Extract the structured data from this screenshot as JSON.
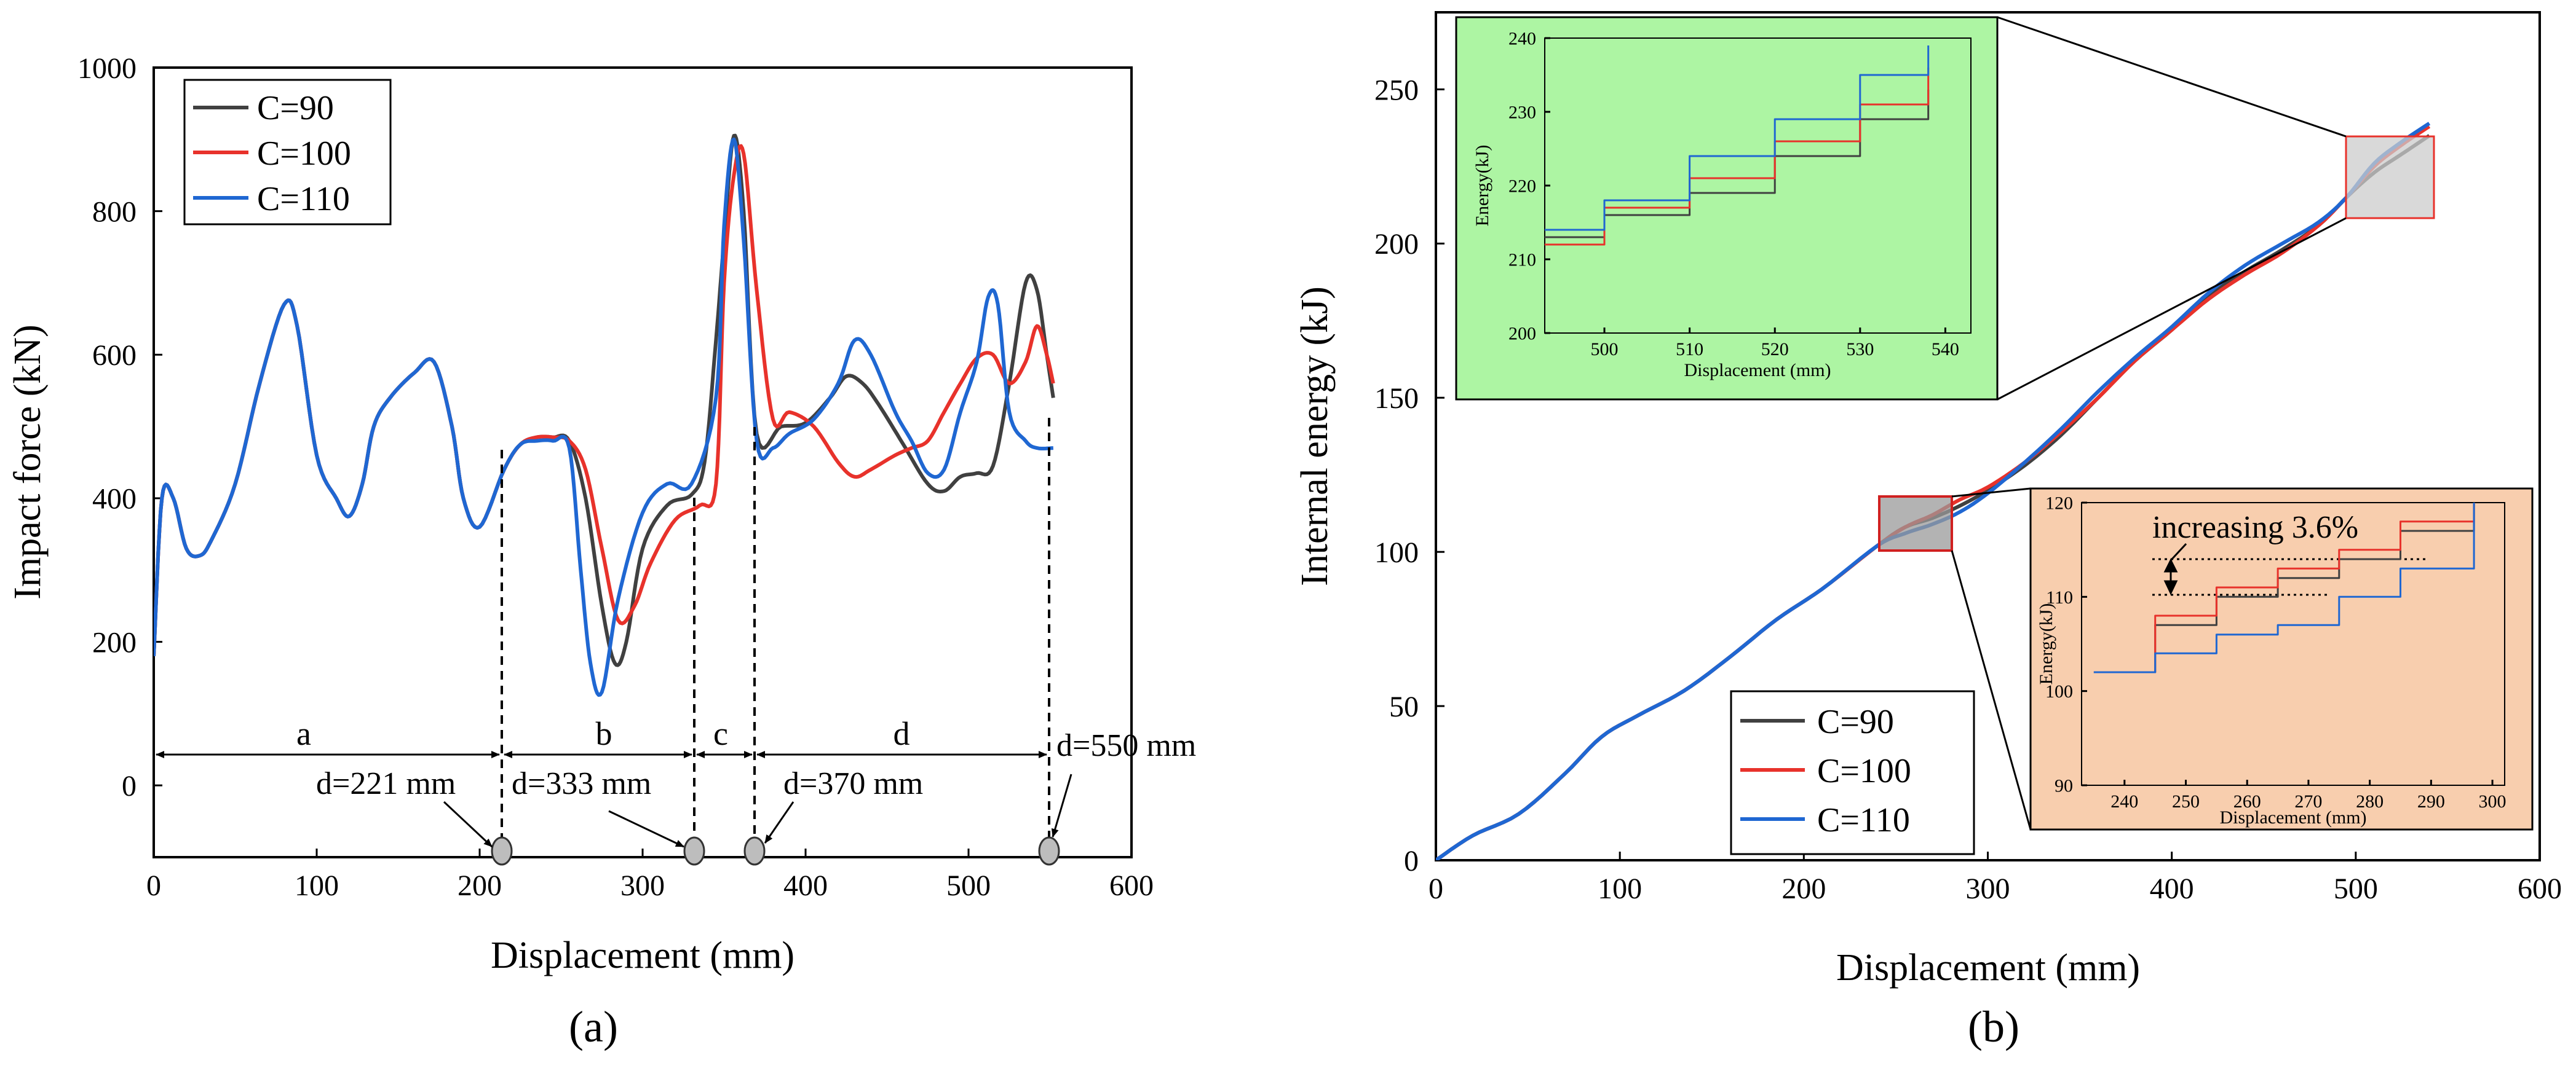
{
  "panel_labels": [
    "(a)",
    "(b)"
  ],
  "chart_data": [
    {
      "type": "line",
      "xlabel": "Displacement (mm)",
      "ylabel": "Impact force (kN)",
      "xlim": [
        0,
        600
      ],
      "ylim": [
        -100,
        1000
      ],
      "xticks": [
        "0",
        "100",
        "200",
        "300",
        "400",
        "500",
        "600"
      ],
      "yticks": [
        "0",
        "200",
        "400",
        "600",
        "800",
        "1000"
      ],
      "legend": {
        "position": "top-left"
      },
      "series": [
        {
          "name": "C=90",
          "color": "#404040",
          "x": [
            0,
            5,
            12,
            20,
            28,
            35,
            50,
            65,
            80,
            88,
            100,
            112,
            120,
            128,
            135,
            145,
            160,
            172,
            183,
            190,
            200,
            215,
            225,
            235,
            245,
            255,
            265,
            275,
            283,
            290,
            300,
            315,
            330,
            338,
            345,
            350,
            356,
            362,
            370,
            385,
            400,
            415,
            425,
            435,
            445,
            460,
            475,
            485,
            495,
            505,
            515,
            525,
            535,
            542,
            548,
            552
          ],
          "y": [
            180,
            400,
            400,
            330,
            320,
            340,
            420,
            560,
            670,
            640,
            460,
            400,
            375,
            420,
            500,
            540,
            575,
            590,
            500,
            400,
            360,
            440,
            475,
            485,
            485,
            480,
            400,
            250,
            170,
            200,
            330,
            390,
            405,
            450,
            620,
            760,
            905,
            800,
            490,
            500,
            505,
            540,
            570,
            560,
            530,
            475,
            420,
            410,
            430,
            435,
            445,
            560,
            700,
            690,
            600,
            540
          ]
        },
        {
          "name": "C=100",
          "color": "#e8322b",
          "x": [
            0,
            5,
            12,
            20,
            28,
            35,
            50,
            65,
            80,
            88,
            100,
            112,
            120,
            128,
            135,
            145,
            160,
            172,
            183,
            190,
            200,
            215,
            225,
            235,
            245,
            255,
            265,
            275,
            285,
            295,
            305,
            320,
            335,
            345,
            350,
            356,
            362,
            370,
            380,
            390,
            405,
            420,
            430,
            440,
            455,
            465,
            475,
            485,
            495,
            505,
            515,
            525,
            535,
            542,
            548,
            552
          ],
          "y": [
            180,
            400,
            400,
            330,
            320,
            340,
            420,
            560,
            670,
            640,
            460,
            400,
            375,
            420,
            500,
            540,
            575,
            590,
            500,
            400,
            360,
            440,
            475,
            485,
            485,
            480,
            440,
            330,
            230,
            250,
            310,
            370,
            390,
            420,
            700,
            850,
            880,
            690,
            510,
            520,
            500,
            450,
            430,
            440,
            460,
            470,
            480,
            520,
            560,
            595,
            600,
            560,
            590,
            640,
            600,
            560
          ]
        },
        {
          "name": "C=110",
          "color": "#1f67d2",
          "x": [
            0,
            5,
            12,
            20,
            28,
            35,
            50,
            65,
            80,
            88,
            100,
            112,
            120,
            128,
            135,
            145,
            160,
            172,
            183,
            190,
            200,
            215,
            225,
            235,
            245,
            255,
            262,
            268,
            275,
            285,
            300,
            315,
            330,
            345,
            350,
            356,
            362,
            370,
            380,
            390,
            405,
            420,
            430,
            440,
            455,
            465,
            475,
            485,
            495,
            505,
            512,
            518,
            525,
            535,
            542,
            552
          ],
          "y": [
            180,
            400,
            400,
            330,
            320,
            340,
            420,
            560,
            670,
            640,
            460,
            400,
            375,
            420,
            500,
            540,
            575,
            590,
            500,
            400,
            360,
            440,
            475,
            480,
            480,
            470,
            300,
            170,
            130,
            260,
            380,
            420,
            420,
            540,
            780,
            900,
            760,
            480,
            470,
            490,
            510,
            560,
            620,
            600,
            520,
            480,
            435,
            440,
            520,
            590,
            680,
            670,
            520,
            480,
            470,
            470
          ]
        }
      ],
      "annotations": {
        "segments": [
          "a",
          "b",
          "c",
          "d"
        ],
        "markers": [
          "d=221 mm",
          "d=333 mm",
          "d=370 mm",
          "d=550 mm"
        ]
      }
    },
    {
      "type": "line",
      "xlabel": "Displacement (mm)",
      "ylabel": "Internal energy (kJ)",
      "xlim": [
        0,
        600
      ],
      "ylim": [
        0,
        275
      ],
      "xticks": [
        "0",
        "100",
        "200",
        "300",
        "400",
        "500",
        "600"
      ],
      "yticks": [
        "0",
        "50",
        "100",
        "150",
        "200",
        "250"
      ],
      "legend": {
        "position": "bottom-center"
      },
      "series": [
        {
          "name": "C=90",
          "color": "#404040",
          "x": [
            0,
            20,
            45,
            70,
            90,
            110,
            135,
            160,
            185,
            210,
            240,
            255,
            270,
            285,
            300,
            320,
            340,
            360,
            380,
            400,
            420,
            440,
            460,
            480,
            495,
            510,
            525,
            540
          ],
          "y": [
            0,
            8,
            15,
            28,
            40,
            47,
            55,
            66,
            78,
            88,
            102,
            108,
            111,
            115,
            120,
            128,
            138,
            150,
            162,
            172,
            183,
            191,
            198,
            206,
            215,
            223,
            229,
            235
          ]
        },
        {
          "name": "C=100",
          "color": "#e8322b",
          "x": [
            0,
            20,
            45,
            70,
            90,
            110,
            135,
            160,
            185,
            210,
            240,
            255,
            270,
            285,
            300,
            320,
            340,
            360,
            380,
            400,
            420,
            440,
            460,
            480,
            495,
            510,
            525,
            540
          ],
          "y": [
            0,
            8,
            15,
            28,
            40,
            47,
            55,
            66,
            78,
            88,
            102,
            108,
            112,
            117,
            121,
            129,
            139,
            150,
            162,
            172,
            182,
            190,
            197,
            206,
            215,
            225,
            232,
            238
          ]
        },
        {
          "name": "C=110",
          "color": "#1f67d2",
          "x": [
            0,
            20,
            45,
            70,
            90,
            110,
            135,
            160,
            185,
            210,
            240,
            255,
            270,
            285,
            300,
            320,
            340,
            360,
            380,
            400,
            420,
            440,
            460,
            480,
            495,
            510,
            525,
            540
          ],
          "y": [
            0,
            8,
            15,
            28,
            40,
            47,
            55,
            66,
            78,
            88,
            102,
            106,
            109,
            113,
            119,
            129,
            140,
            152,
            163,
            173,
            184,
            193,
            200,
            207,
            215,
            226,
            233,
            239
          ]
        }
      ],
      "insets": [
        {
          "background": "#adf5a3",
          "xlabel": "Displacement (mm)",
          "ylabel": "Energy(kJ)",
          "xlim": [
            493,
            543
          ],
          "ylim": [
            200,
            240
          ],
          "xticks": [
            "500",
            "510",
            "520",
            "530",
            "540"
          ],
          "yticks": [
            "200",
            "210",
            "220",
            "230",
            "240"
          ],
          "series": [
            {
              "name": "C=90",
              "x": [
                493,
                500,
                510,
                520,
                530,
                538
              ],
              "y": [
                213,
                216,
                219,
                224,
                229,
                233
              ]
            },
            {
              "name": "C=100",
              "x": [
                493,
                500,
                510,
                520,
                530,
                538
              ],
              "y": [
                212,
                217,
                221,
                226,
                231,
                236
              ]
            },
            {
              "name": "C=110",
              "x": [
                493,
                500,
                510,
                520,
                530,
                538
              ],
              "y": [
                214,
                218,
                224,
                229,
                235,
                239
              ]
            }
          ]
        },
        {
          "background": "#f8ceae",
          "xlabel": "Displacement (mm)",
          "ylabel": "Energy(kJ)",
          "xlim": [
            233,
            302
          ],
          "ylim": [
            90,
            120
          ],
          "xticks": [
            "240",
            "250",
            "260",
            "270",
            "280",
            "290",
            "300"
          ],
          "yticks": [
            "90",
            "100",
            "110",
            "120"
          ],
          "annotation": "increasing 3.6%",
          "series": [
            {
              "name": "C=90",
              "x": [
                235,
                245,
                255,
                265,
                275,
                285,
                297
              ],
              "y": [
                102,
                107,
                110,
                112,
                114,
                117,
                120
              ]
            },
            {
              "name": "C=100",
              "x": [
                235,
                245,
                255,
                265,
                275,
                285,
                297
              ],
              "y": [
                102,
                108,
                111,
                113,
                115,
                118,
                120
              ]
            },
            {
              "name": "C=110",
              "x": [
                235,
                245,
                255,
                265,
                275,
                285,
                297
              ],
              "y": [
                102,
                104,
                106,
                107,
                110,
                113,
                120
              ]
            }
          ]
        }
      ]
    }
  ]
}
